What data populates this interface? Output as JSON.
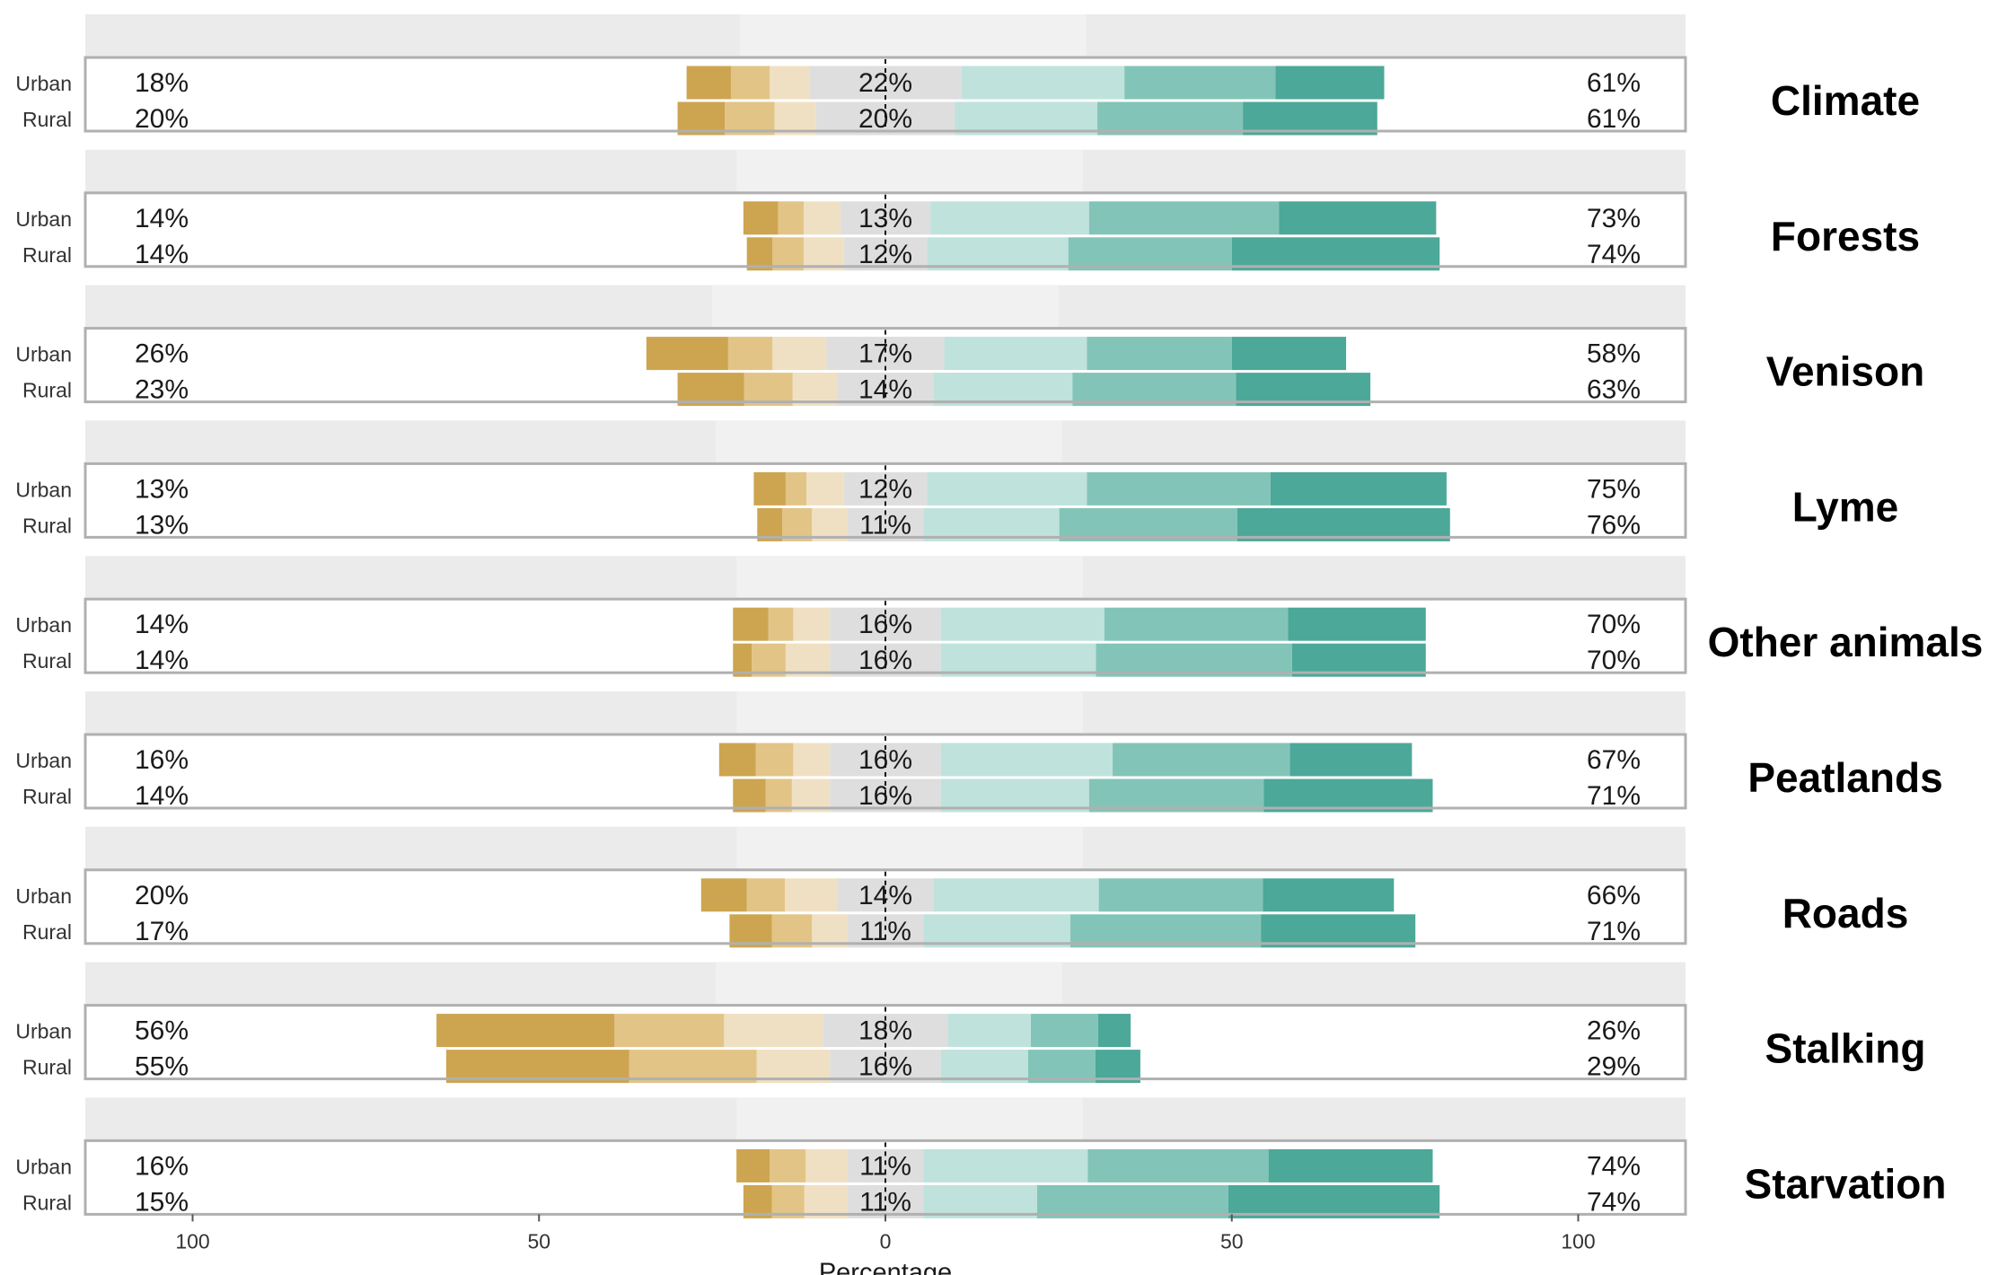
{
  "chart_data": {
    "type": "bar",
    "subtype": "diverging-stacked-likert",
    "xlabel": "Percentage",
    "xlim": [
      -100,
      100
    ],
    "xticks": [
      -100,
      -50,
      0,
      50,
      100
    ],
    "xtick_labels": [
      "100",
      "50",
      "0",
      "50",
      "100"
    ],
    "grid": false,
    "row_labels": [
      "Urban",
      "Rural"
    ],
    "colors": {
      "neg_strong": "#cda550",
      "neg_mid": "#e2c487",
      "neg_weak": "#f0e0c3",
      "neutral": "#dedede",
      "pos_weak": "#bfe2dc",
      "pos_mid": "#83c4b8",
      "pos_strong": "#4ca899",
      "strip_dark": "#ebebeb",
      "strip_light": "#f1f1f1",
      "panel_border": "#b0b0b0"
    },
    "panels": [
      {
        "topic": "Climate",
        "strip_light": [
          -21,
          29
        ],
        "rows": [
          {
            "group": "Urban",
            "neg_label": "18%",
            "neutral_label": "22%",
            "pos_label": "61%",
            "neg": [
              6.4,
              5.6,
              5.7
            ],
            "neutral": 22,
            "pos": [
              23.5,
              21.8,
              15.7
            ]
          },
          {
            "group": "Rural",
            "neg_label": "20%",
            "neutral_label": "20%",
            "pos_label": "61%",
            "neg": [
              6.8,
              7.2,
              6.0
            ],
            "neutral": 20,
            "pos": [
              20.6,
              21.0,
              19.4
            ]
          }
        ]
      },
      {
        "topic": "Forests",
        "strip_light": [
          -21.5,
          28.5
        ],
        "rows": [
          {
            "group": "Urban",
            "neg_label": "14%",
            "neutral_label": "13%",
            "pos_label": "73%",
            "neg": [
              5.0,
              3.7,
              5.3
            ],
            "neutral": 13,
            "pos": [
              22.9,
              27.4,
              22.7
            ]
          },
          {
            "group": "Rural",
            "neg_label": "14%",
            "neutral_label": "12%",
            "pos_label": "74%",
            "neg": [
              3.7,
              4.5,
              5.8
            ],
            "neutral": 12,
            "pos": [
              20.4,
              23.6,
              30.0
            ]
          }
        ]
      },
      {
        "topic": "Venison",
        "strip_light": [
          -25,
          25
        ],
        "rows": [
          {
            "group": "Urban",
            "neg_label": "26%",
            "neutral_label": "17%",
            "pos_label": "58%",
            "neg": [
              11.8,
              6.4,
              7.8
            ],
            "neutral": 17,
            "pos": [
              20.6,
              20.9,
              16.5
            ]
          },
          {
            "group": "Rural",
            "neg_label": "23%",
            "neutral_label": "14%",
            "pos_label": "63%",
            "neg": [
              9.6,
              7.0,
              6.4
            ],
            "neutral": 14,
            "pos": [
              20.0,
              23.6,
              19.4
            ]
          }
        ]
      },
      {
        "topic": "Lyme",
        "strip_light": [
          -24.5,
          25.5
        ],
        "rows": [
          {
            "group": "Urban",
            "neg_label": "13%",
            "neutral_label": "12%",
            "pos_label": "75%",
            "neg": [
              4.6,
              3.0,
              5.4
            ],
            "neutral": 12,
            "pos": [
              23.1,
              26.5,
              25.4
            ]
          },
          {
            "group": "Rural",
            "neg_label": "13%",
            "neutral_label": "11%",
            "pos_label": "76%",
            "neg": [
              3.6,
              4.3,
              5.1
            ],
            "neutral": 11,
            "pos": [
              19.6,
              25.7,
              30.7
            ]
          }
        ]
      },
      {
        "topic": "Other animals",
        "strip_light": [
          -21.5,
          28.5
        ],
        "rows": [
          {
            "group": "Urban",
            "neg_label": "14%",
            "neutral_label": "16%",
            "pos_label": "70%",
            "neg": [
              5.1,
              3.6,
              5.3
            ],
            "neutral": 16,
            "pos": [
              23.6,
              26.5,
              19.9
            ]
          },
          {
            "group": "Rural",
            "neg_label": "14%",
            "neutral_label": "16%",
            "pos_label": "70%",
            "neg": [
              2.7,
              4.9,
              6.4
            ],
            "neutral": 16,
            "pos": [
              22.4,
              28.3,
              19.3
            ]
          }
        ]
      },
      {
        "topic": "Peatlands",
        "strip_light": [
          -21.5,
          28.5
        ],
        "rows": [
          {
            "group": "Urban",
            "neg_label": "16%",
            "neutral_label": "16%",
            "pos_label": "67%",
            "neg": [
              5.3,
              5.4,
              5.3
            ],
            "neutral": 16,
            "pos": [
              24.8,
              25.6,
              17.6
            ]
          },
          {
            "group": "Rural",
            "neg_label": "14%",
            "neutral_label": "16%",
            "pos_label": "71%",
            "neg": [
              4.7,
              3.8,
              5.5
            ],
            "neutral": 16,
            "pos": [
              21.4,
              25.2,
              24.4
            ]
          }
        ]
      },
      {
        "topic": "Roads",
        "strip_light": [
          -21.5,
          28.5
        ],
        "rows": [
          {
            "group": "Urban",
            "neg_label": "20%",
            "neutral_label": "14%",
            "pos_label": "66%",
            "neg": [
              6.6,
              5.5,
              7.5
            ],
            "neutral": 14,
            "pos": [
              23.8,
              23.7,
              18.9
            ]
          },
          {
            "group": "Rural",
            "neg_label": "17%",
            "neutral_label": "11%",
            "pos_label": "71%",
            "neg": [
              6.1,
              5.8,
              5.1
            ],
            "neutral": 11,
            "pos": [
              21.2,
              27.5,
              22.3
            ]
          }
        ]
      },
      {
        "topic": "Stalking",
        "strip_light": [
          -24.5,
          25.5
        ],
        "rows": [
          {
            "group": "Urban",
            "neg_label": "56%",
            "neutral_label": "18%",
            "pos_label": "26%",
            "neg": [
              25.7,
              15.8,
              14.3
            ],
            "neutral": 18,
            "pos": [
              12.0,
              9.7,
              4.7
            ]
          },
          {
            "group": "Rural",
            "neg_label": "55%",
            "neutral_label": "16%",
            "pos_label": "29%",
            "neg": [
              26.4,
              18.4,
              10.6
            ],
            "neutral": 16,
            "pos": [
              12.6,
              9.7,
              6.5
            ]
          }
        ]
      },
      {
        "topic": "Starvation",
        "strip_light": [
          -21.5,
          28.5
        ],
        "rows": [
          {
            "group": "Urban",
            "neg_label": "16%",
            "neutral_label": "11%",
            "pos_label": "74%",
            "neg": [
              4.8,
              5.2,
              6.0
            ],
            "neutral": 11,
            "pos": [
              23.7,
              26.1,
              23.7
            ]
          },
          {
            "group": "Rural",
            "neg_label": "15%",
            "neutral_label": "11%",
            "pos_label": "74%",
            "neg": [
              4.1,
              4.7,
              6.2
            ],
            "neutral": 11,
            "pos": [
              16.4,
              27.6,
              30.5
            ]
          }
        ]
      }
    ]
  }
}
